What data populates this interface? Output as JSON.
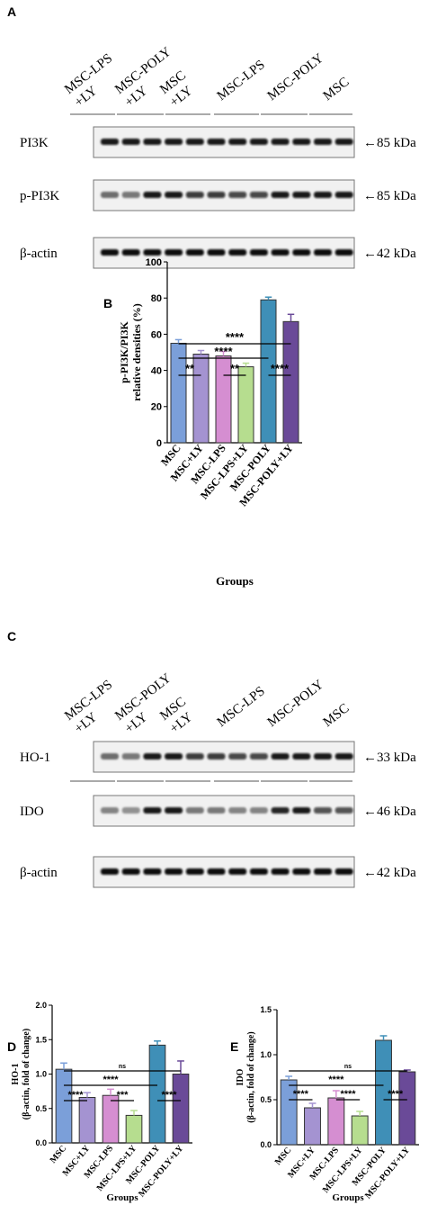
{
  "colors": {
    "MSC": "#7b9fd9",
    "MSC+LY": "#a493d1",
    "MSC-LPS": "#d58ed1",
    "MSC-LPS+LY": "#b6dd8f",
    "MSC-POLY": "#3f8fb7",
    "MSC-POLY+LY": "#6a4a98"
  },
  "panelA": {
    "letter": "A",
    "lanes": [
      "MSC-LPS\n+LY",
      "MSC-POLY\n+LY",
      "MSC\n+LY",
      "MSC-LPS",
      "MSC-POLY",
      "MSC"
    ],
    "blots": [
      {
        "label": "PI3K",
        "kda": "←85 kDa"
      },
      {
        "label": "p-PI3K",
        "kda": "←85 kDa"
      },
      {
        "label": "β-actin",
        "kda": "←42 kDa"
      }
    ]
  },
  "panelC": {
    "letter": "C",
    "lanes": [
      "MSC-LPS\n+LY",
      "MSC-POLY\n+LY",
      "MSC\n+LY",
      "MSC-LPS",
      "MSC-POLY",
      "MSC"
    ],
    "blots": [
      {
        "label": "HO-1",
        "kda": "←33 kDa"
      },
      {
        "label": "IDO",
        "kda": "←46 kDa"
      },
      {
        "label": "β-actin",
        "kda": "←42 kDa"
      }
    ]
  },
  "chart_data": [
    {
      "panel": "B",
      "type": "bar",
      "categories": [
        "MSC",
        "MSC+LY",
        "MSC-LPS",
        "MSC-LPS+LY",
        "MSC-POLY",
        "MSC-POLY+LY"
      ],
      "values": [
        55,
        49,
        48,
        42,
        79,
        67
      ],
      "errors": [
        2,
        2,
        2.5,
        2,
        1.5,
        4
      ],
      "ylabel": [
        "p-PI3K/PI3K",
        "relative densities (%)"
      ],
      "xlabel": "Groups",
      "ylim": [
        0,
        100
      ],
      "yticks": [
        "0",
        "20",
        "40",
        "60",
        "80",
        "100"
      ],
      "significance": [
        {
          "from": 0,
          "to": 5,
          "label": "****"
        },
        {
          "from": 0,
          "to": 4,
          "label": "****"
        },
        {
          "from": 0,
          "to": 1,
          "label": "**"
        },
        {
          "from": 2,
          "to": 3,
          "label": "**"
        },
        {
          "from": 4,
          "to": 5,
          "label": "****"
        }
      ]
    },
    {
      "panel": "D",
      "type": "bar",
      "categories": [
        "MSC",
        "MSC+LY",
        "MSC-LPS",
        "MSC-LPS+LY",
        "MSC-POLY",
        "MSC-POLY+LY"
      ],
      "values": [
        1.07,
        0.66,
        0.69,
        0.4,
        1.42,
        1.0
      ],
      "errors": [
        0.09,
        0.07,
        0.09,
        0.07,
        0.06,
        0.19
      ],
      "ylabel": [
        "HO-1",
        "(β-actin, fold of change)"
      ],
      "xlabel": "Groups",
      "ylim": [
        0,
        2.0
      ],
      "yticks": [
        "0.0",
        "0.5",
        "1.0",
        "1.5",
        "2.0"
      ],
      "significance": [
        {
          "from": 0,
          "to": 5,
          "label": "ns"
        },
        {
          "from": 0,
          "to": 4,
          "label": "****"
        },
        {
          "from": 0,
          "to": 1,
          "label": "****"
        },
        {
          "from": 2,
          "to": 3,
          "label": "***"
        },
        {
          "from": 4,
          "to": 5,
          "label": "****"
        }
      ]
    },
    {
      "panel": "E",
      "type": "bar",
      "categories": [
        "MSC",
        "MSC+LY",
        "MSC-LPS",
        "MSC-LPS+LY",
        "MSC-POLY",
        "MSC-POLY+LY"
      ],
      "values": [
        0.72,
        0.41,
        0.52,
        0.32,
        1.16,
        0.81
      ],
      "errors": [
        0.04,
        0.05,
        0.08,
        0.05,
        0.05,
        0.02
      ],
      "ylabel": [
        "IDO",
        "(β-actin, fold of change)"
      ],
      "xlabel": "Groups",
      "ylim": [
        0,
        1.5
      ],
      "yticks": [
        "0.0",
        "0.5",
        "1.0",
        "1.5"
      ],
      "significance": [
        {
          "from": 0,
          "to": 5,
          "label": "ns"
        },
        {
          "from": 0,
          "to": 4,
          "label": "****"
        },
        {
          "from": 0,
          "to": 1,
          "label": "****"
        },
        {
          "from": 2,
          "to": 3,
          "label": "****"
        },
        {
          "from": 4,
          "to": 5,
          "label": "****"
        }
      ]
    }
  ]
}
